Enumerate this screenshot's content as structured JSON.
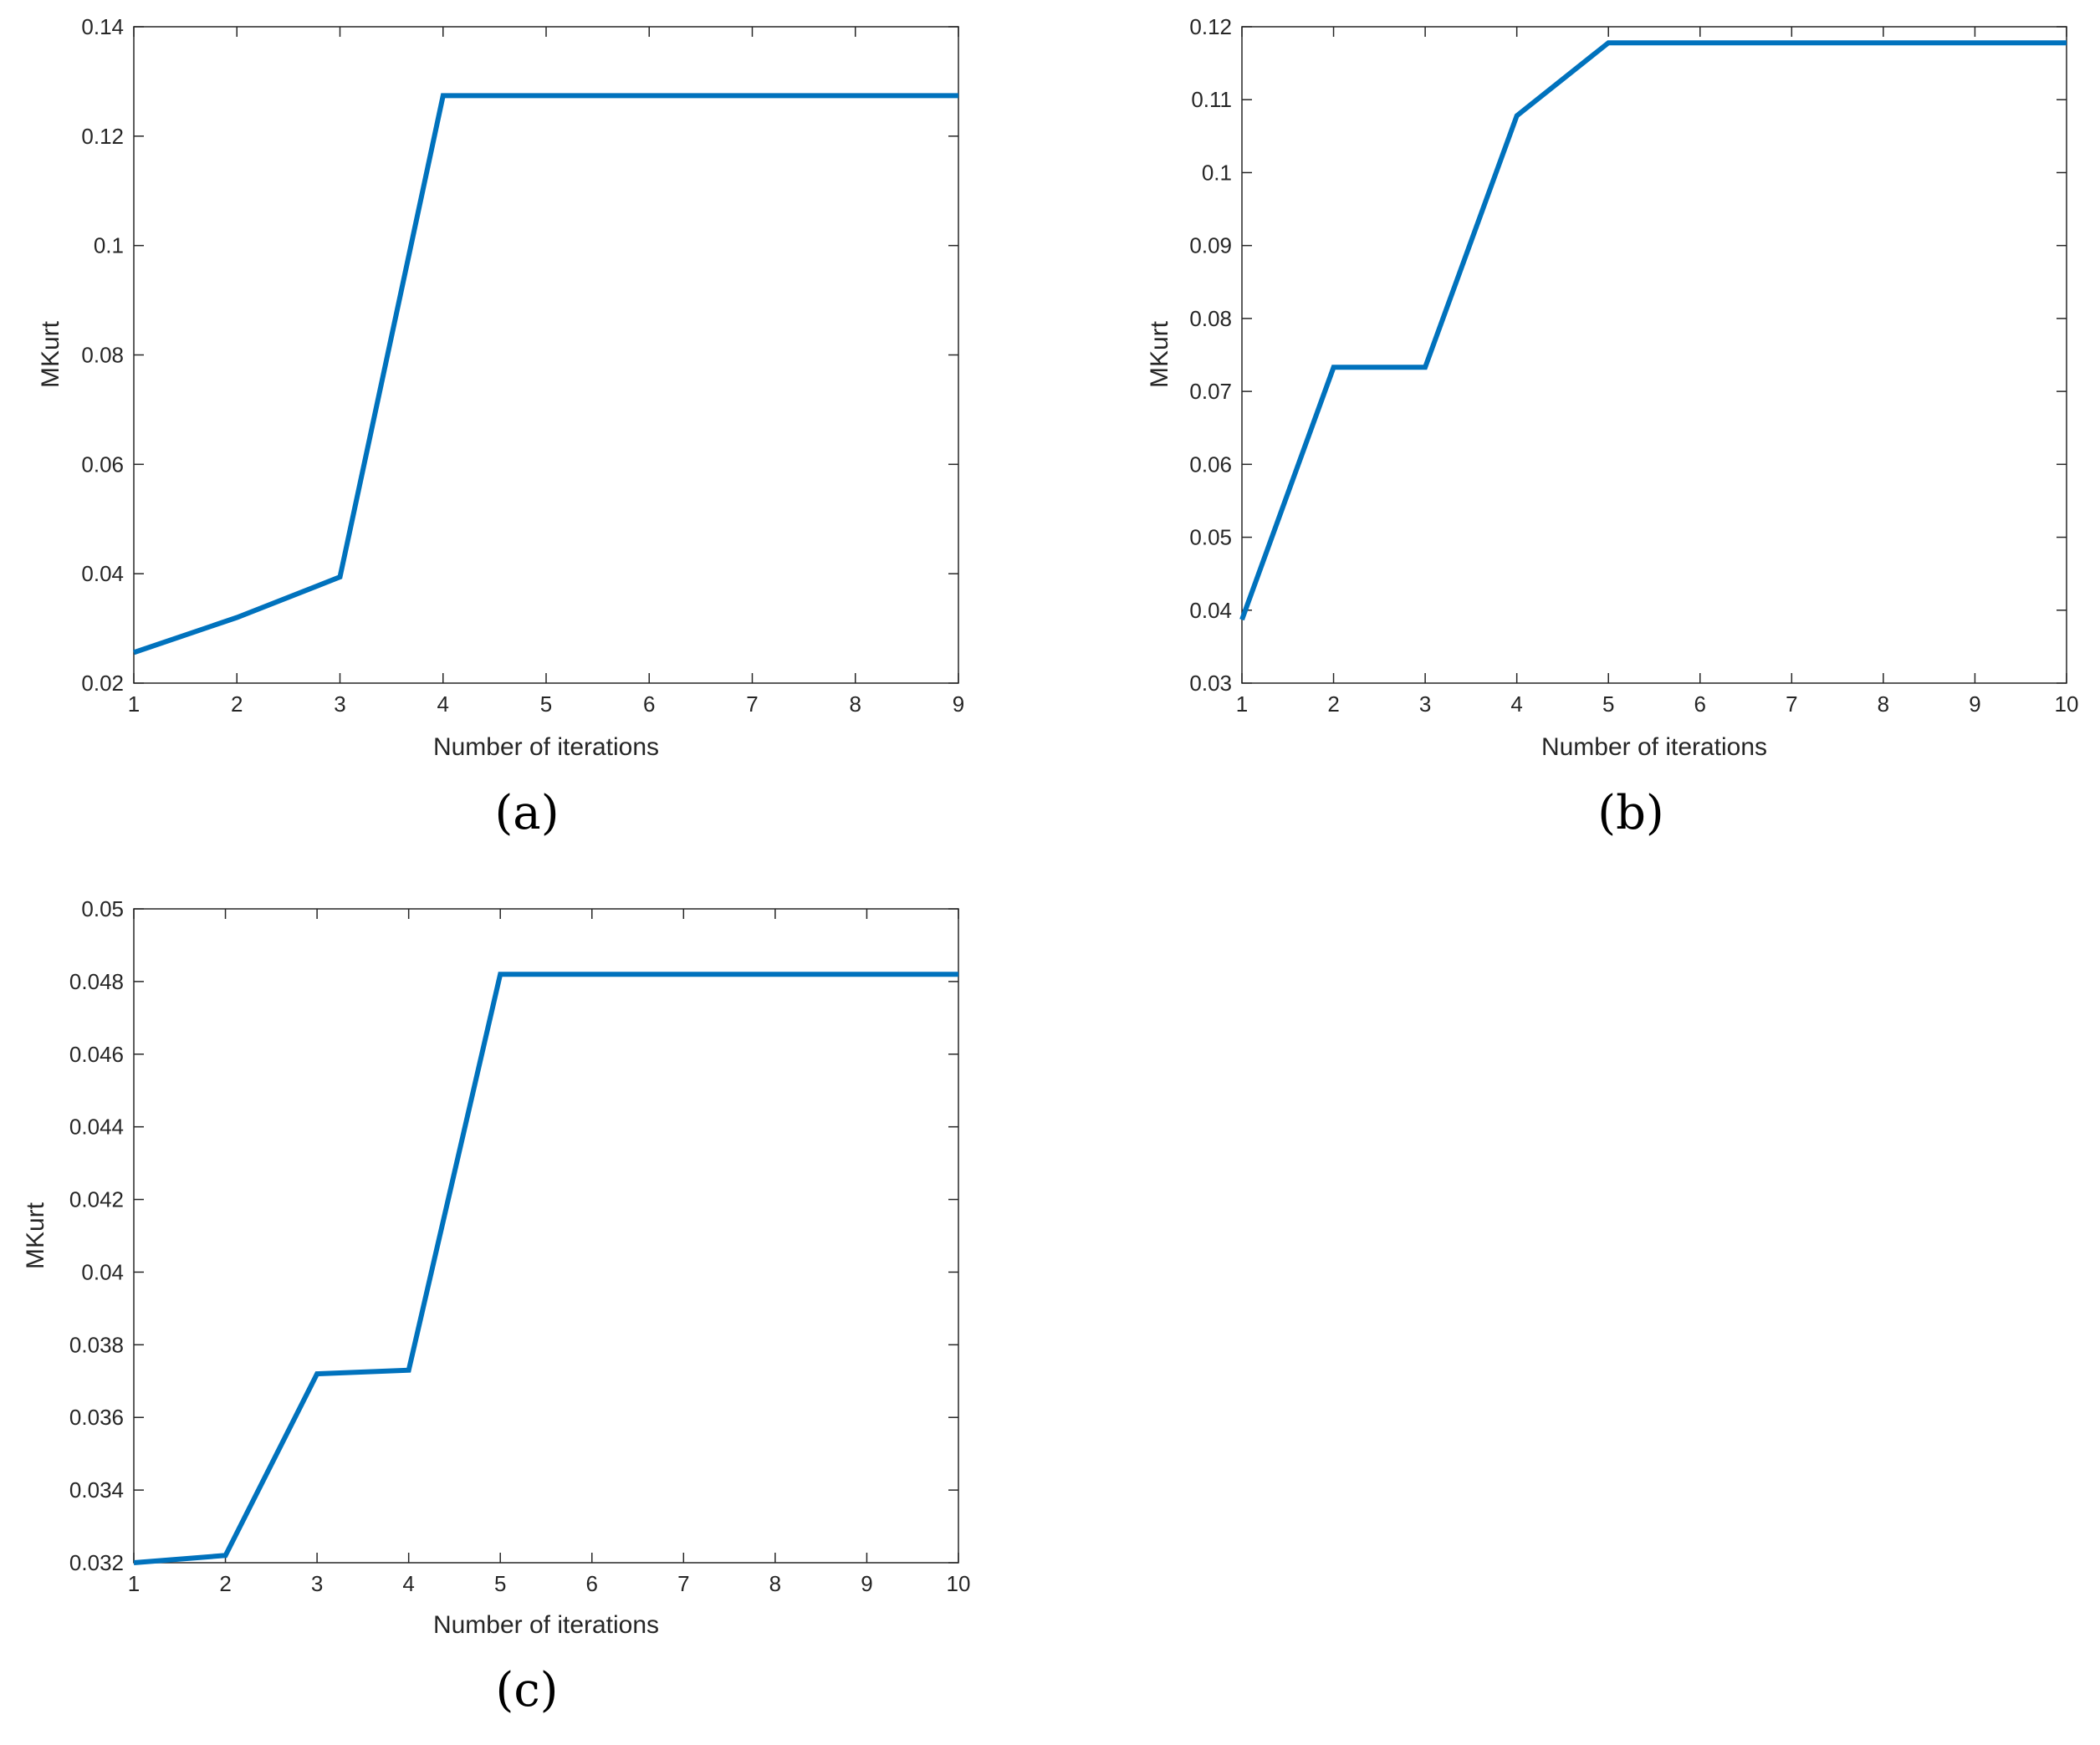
{
  "figure": {
    "line_color": "#0072BD",
    "axes_color": "#262626"
  },
  "chart_data": [
    {
      "type": "line",
      "panel_label": "(a)",
      "xlabel": "Number of iterations",
      "ylabel": "MKurt",
      "xlim": [
        1,
        9
      ],
      "ylim": [
        0.02,
        0.14
      ],
      "xticks": [
        1,
        2,
        3,
        4,
        5,
        6,
        7,
        8,
        9
      ],
      "yticks": [
        0.02,
        0.04,
        0.06,
        0.08,
        0.1,
        0.12,
        0.14
      ],
      "ytick_labels": [
        "0.02",
        "0.04",
        "0.06",
        "0.08",
        "0.1",
        "0.12",
        "0.14"
      ],
      "grid": false,
      "series": [
        {
          "x": [
            1,
            2,
            3,
            4,
            5,
            6,
            7,
            8,
            9
          ],
          "values": [
            0.0256,
            0.032,
            0.0394,
            0.1274,
            0.1274,
            0.1274,
            0.1274,
            0.1274,
            0.1274
          ]
        }
      ]
    },
    {
      "type": "line",
      "panel_label": "(b)",
      "xlabel": "Number of iterations",
      "ylabel": "MKurt",
      "xlim": [
        1,
        10
      ],
      "ylim": [
        0.03,
        0.12
      ],
      "xticks": [
        1,
        2,
        3,
        4,
        5,
        6,
        7,
        8,
        9,
        10
      ],
      "yticks": [
        0.03,
        0.04,
        0.05,
        0.06,
        0.07,
        0.08,
        0.09,
        0.1,
        0.11,
        0.12
      ],
      "ytick_labels": [
        "0.03",
        "0.04",
        "0.05",
        "0.06",
        "0.07",
        "0.08",
        "0.09",
        "0.1",
        "0.11",
        "0.12"
      ],
      "grid": false,
      "series": [
        {
          "x": [
            1,
            2,
            3,
            4,
            5,
            6,
            7,
            8,
            9,
            10
          ],
          "values": [
            0.0387,
            0.0733,
            0.0733,
            0.1078,
            0.1178,
            0.1178,
            0.1178,
            0.1178,
            0.1178,
            0.1178
          ]
        }
      ]
    },
    {
      "type": "line",
      "panel_label": "(c)",
      "xlabel": "Number of iterations",
      "ylabel": "MKurt",
      "xlim": [
        1,
        10
      ],
      "ylim": [
        0.032,
        0.05
      ],
      "xticks": [
        1,
        2,
        3,
        4,
        5,
        6,
        7,
        8,
        9,
        10
      ],
      "yticks": [
        0.032,
        0.034,
        0.036,
        0.038,
        0.04,
        0.042,
        0.044,
        0.046,
        0.048,
        0.05
      ],
      "ytick_labels": [
        "0.032",
        "0.034",
        "0.036",
        "0.038",
        "0.04",
        "0.042",
        "0.044",
        "0.046",
        "0.048",
        "0.05"
      ],
      "grid": false,
      "series": [
        {
          "x": [
            1,
            2,
            3,
            4,
            5,
            6,
            7,
            8,
            9,
            10
          ],
          "values": [
            0.032,
            0.0322,
            0.0372,
            0.0373,
            0.0482,
            0.0482,
            0.0482,
            0.0482,
            0.0482,
            0.0482
          ]
        }
      ]
    }
  ]
}
